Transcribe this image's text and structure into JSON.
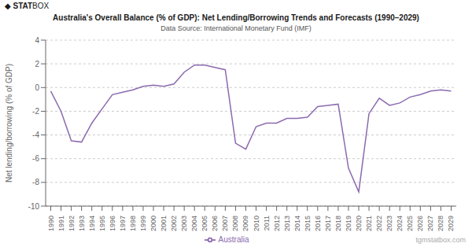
{
  "chart_data": {
    "type": "line",
    "title": "Australia's Overall Balance (% of GDP): Net Lending/Borrowing Trends and Forecasts (1990–2029)",
    "subtitle": "Data Source: International Monetary Fund (IMF)",
    "ylabel": "Net lending/borrowing (% of GDP)",
    "annotations": [
      "◆ STAT",
      "BOX",
      "tgmstatbox.com"
    ],
    "x": [
      1990,
      1991,
      1992,
      1993,
      1994,
      1995,
      1996,
      1997,
      1998,
      1999,
      2000,
      2001,
      2002,
      2003,
      2004,
      2005,
      2006,
      2007,
      2008,
      2009,
      2010,
      2011,
      2012,
      2013,
      2014,
      2015,
      2016,
      2017,
      2018,
      2019,
      2020,
      2021,
      2022,
      2023,
      2024,
      2025,
      2026,
      2027,
      2028,
      2029
    ],
    "series": [
      {
        "name": "Australia",
        "color": "#8b6aaf",
        "values": [
          -0.3,
          -2.0,
          -4.5,
          -4.6,
          -3.0,
          -1.8,
          -0.6,
          -0.4,
          -0.2,
          0.1,
          0.2,
          0.1,
          0.3,
          1.3,
          1.9,
          1.9,
          1.7,
          1.5,
          -4.7,
          -5.2,
          -3.3,
          -3.0,
          -3.0,
          -2.6,
          -2.6,
          -2.5,
          -1.6,
          -1.5,
          -1.4,
          -6.8,
          -8.8,
          -2.2,
          -0.9,
          -1.5,
          -1.3,
          -0.8,
          -0.6,
          -0.3,
          -0.2,
          -0.3
        ]
      }
    ],
    "xlim": [
      1989.5,
      2029.5
    ],
    "xticks": [
      1990,
      1991,
      1992,
      1993,
      1994,
      1995,
      1996,
      1997,
      1998,
      1999,
      2000,
      2001,
      2002,
      2003,
      2004,
      2005,
      2006,
      2007,
      2008,
      2009,
      2010,
      2011,
      2012,
      2013,
      2014,
      2015,
      2016,
      2017,
      2018,
      2019,
      2020,
      2021,
      2022,
      2023,
      2024,
      2025,
      2026,
      2027,
      2028,
      2029
    ],
    "ylim": [
      -10,
      4
    ],
    "yticks": [
      -10,
      -8,
      -6,
      -4,
      -2,
      0,
      2,
      4
    ],
    "grid": true,
    "legend": "bottom"
  }
}
